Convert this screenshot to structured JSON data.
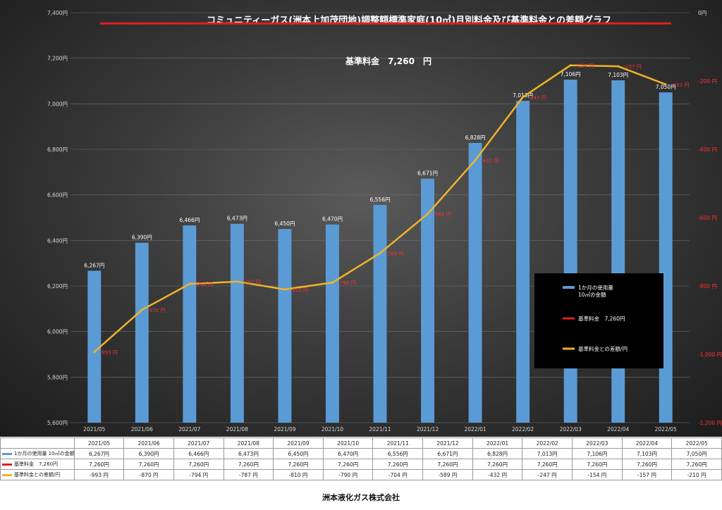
{
  "chart_data": {
    "type": "bar",
    "title": "コミュニティーガス(洲本上加茂団地)調整額標準家庭(10㎥)月別料金及び基準料金との差額グラフ",
    "categories": [
      "2021/05",
      "2021/06",
      "2021/07",
      "2021/08",
      "2021/09",
      "2021/10",
      "2021/11",
      "2021/12",
      "2022/01",
      "2022/02",
      "2022/03",
      "2022/04",
      "2022/05"
    ],
    "series": [
      {
        "name": "1か月の使用量 10㎥の金額",
        "type": "bar",
        "axis": "left",
        "color": "#5b9bd5",
        "values": [
          6267,
          6390,
          6466,
          6473,
          6450,
          6470,
          6556,
          6671,
          6828,
          7013,
          7106,
          7103,
          7050
        ],
        "labels": [
          "6,267円",
          "6,390円",
          "6,466円",
          "6,473円",
          "6,450円",
          "6,470円",
          "6,556円",
          "6,671円",
          "6,828円",
          "7,013円",
          "7,106円",
          "7,103円",
          "7,050円"
        ]
      },
      {
        "name": "基準料金　7,260円",
        "type": "line",
        "axis": "left",
        "color": "#e02020",
        "values": [
          7260,
          7260,
          7260,
          7260,
          7260,
          7260,
          7260,
          7260,
          7260,
          7260,
          7260,
          7260,
          7260
        ]
      },
      {
        "name": "基準料金との差額/円",
        "type": "line",
        "axis": "right",
        "color": "#f0b429",
        "values": [
          -993,
          -870,
          -794,
          -787,
          -810,
          -790,
          -704,
          -589,
          -432,
          -247,
          -154,
          -157,
          -210
        ],
        "labels": [
          "-993 円",
          "-870 円",
          "-794 円",
          "-787 円",
          "-810 円",
          "-790 円",
          "-704 円",
          "-589 円",
          "-432 円",
          "-247 円",
          "-154 円",
          "-157 円",
          "-210 円"
        ]
      }
    ],
    "ylim": [
      5600,
      7400
    ],
    "y_ticks": [
      "5,600円",
      "5,800円",
      "6,000円",
      "6,200円",
      "6,400円",
      "6,600円",
      "6,800円",
      "7,000円",
      "7,200円",
      "7,400円"
    ],
    "y2lim": [
      -1200,
      0
    ],
    "y2_ticks": [
      "-1,200 円",
      "-1,000 円",
      "-800 円",
      "-600 円",
      "-400 円",
      "-200 円",
      "0円"
    ],
    "annotation": "基準料金　7,260　円",
    "legend_position": "lower-right",
    "legend_labels": [
      "1か月の使用量\n10㎥の金額",
      "基準料金　7,260円",
      "基準料金との差額/円"
    ],
    "grid": true
  },
  "table": {
    "row_labels": [
      "1か月の使用量\n10㎥の金額",
      "基準料金　7,260円",
      "基準料金との差額/円"
    ],
    "rows": [
      [
        "6,267円",
        "6,390円",
        "6,466円",
        "6,473円",
        "6,450円",
        "6,470円",
        "6,556円",
        "6,671円",
        "6,828円",
        "7,013円",
        "7,106円",
        "7,103円",
        "7,050円"
      ],
      [
        "7,260円",
        "7,260円",
        "7,260円",
        "7,260円",
        "7,260円",
        "7,260円",
        "7,260円",
        "7,260円",
        "7,260円",
        "7,260円",
        "7,260円",
        "7,260円",
        "7,260円"
      ],
      [
        "-993 円",
        "-870 円",
        "-794 円",
        "-787 円",
        "-810 円",
        "-790 円",
        "-704 円",
        "-589 円",
        "-432 円",
        "-247 円",
        "-154 円",
        "-157 円",
        "-210 円"
      ]
    ]
  },
  "footer": "洲本液化ガス株式会社",
  "colors": {
    "bar": "#5b9bd5",
    "ref_line": "#e02020",
    "diff_line": "#f0b429",
    "diff_label": "#ff3030"
  }
}
